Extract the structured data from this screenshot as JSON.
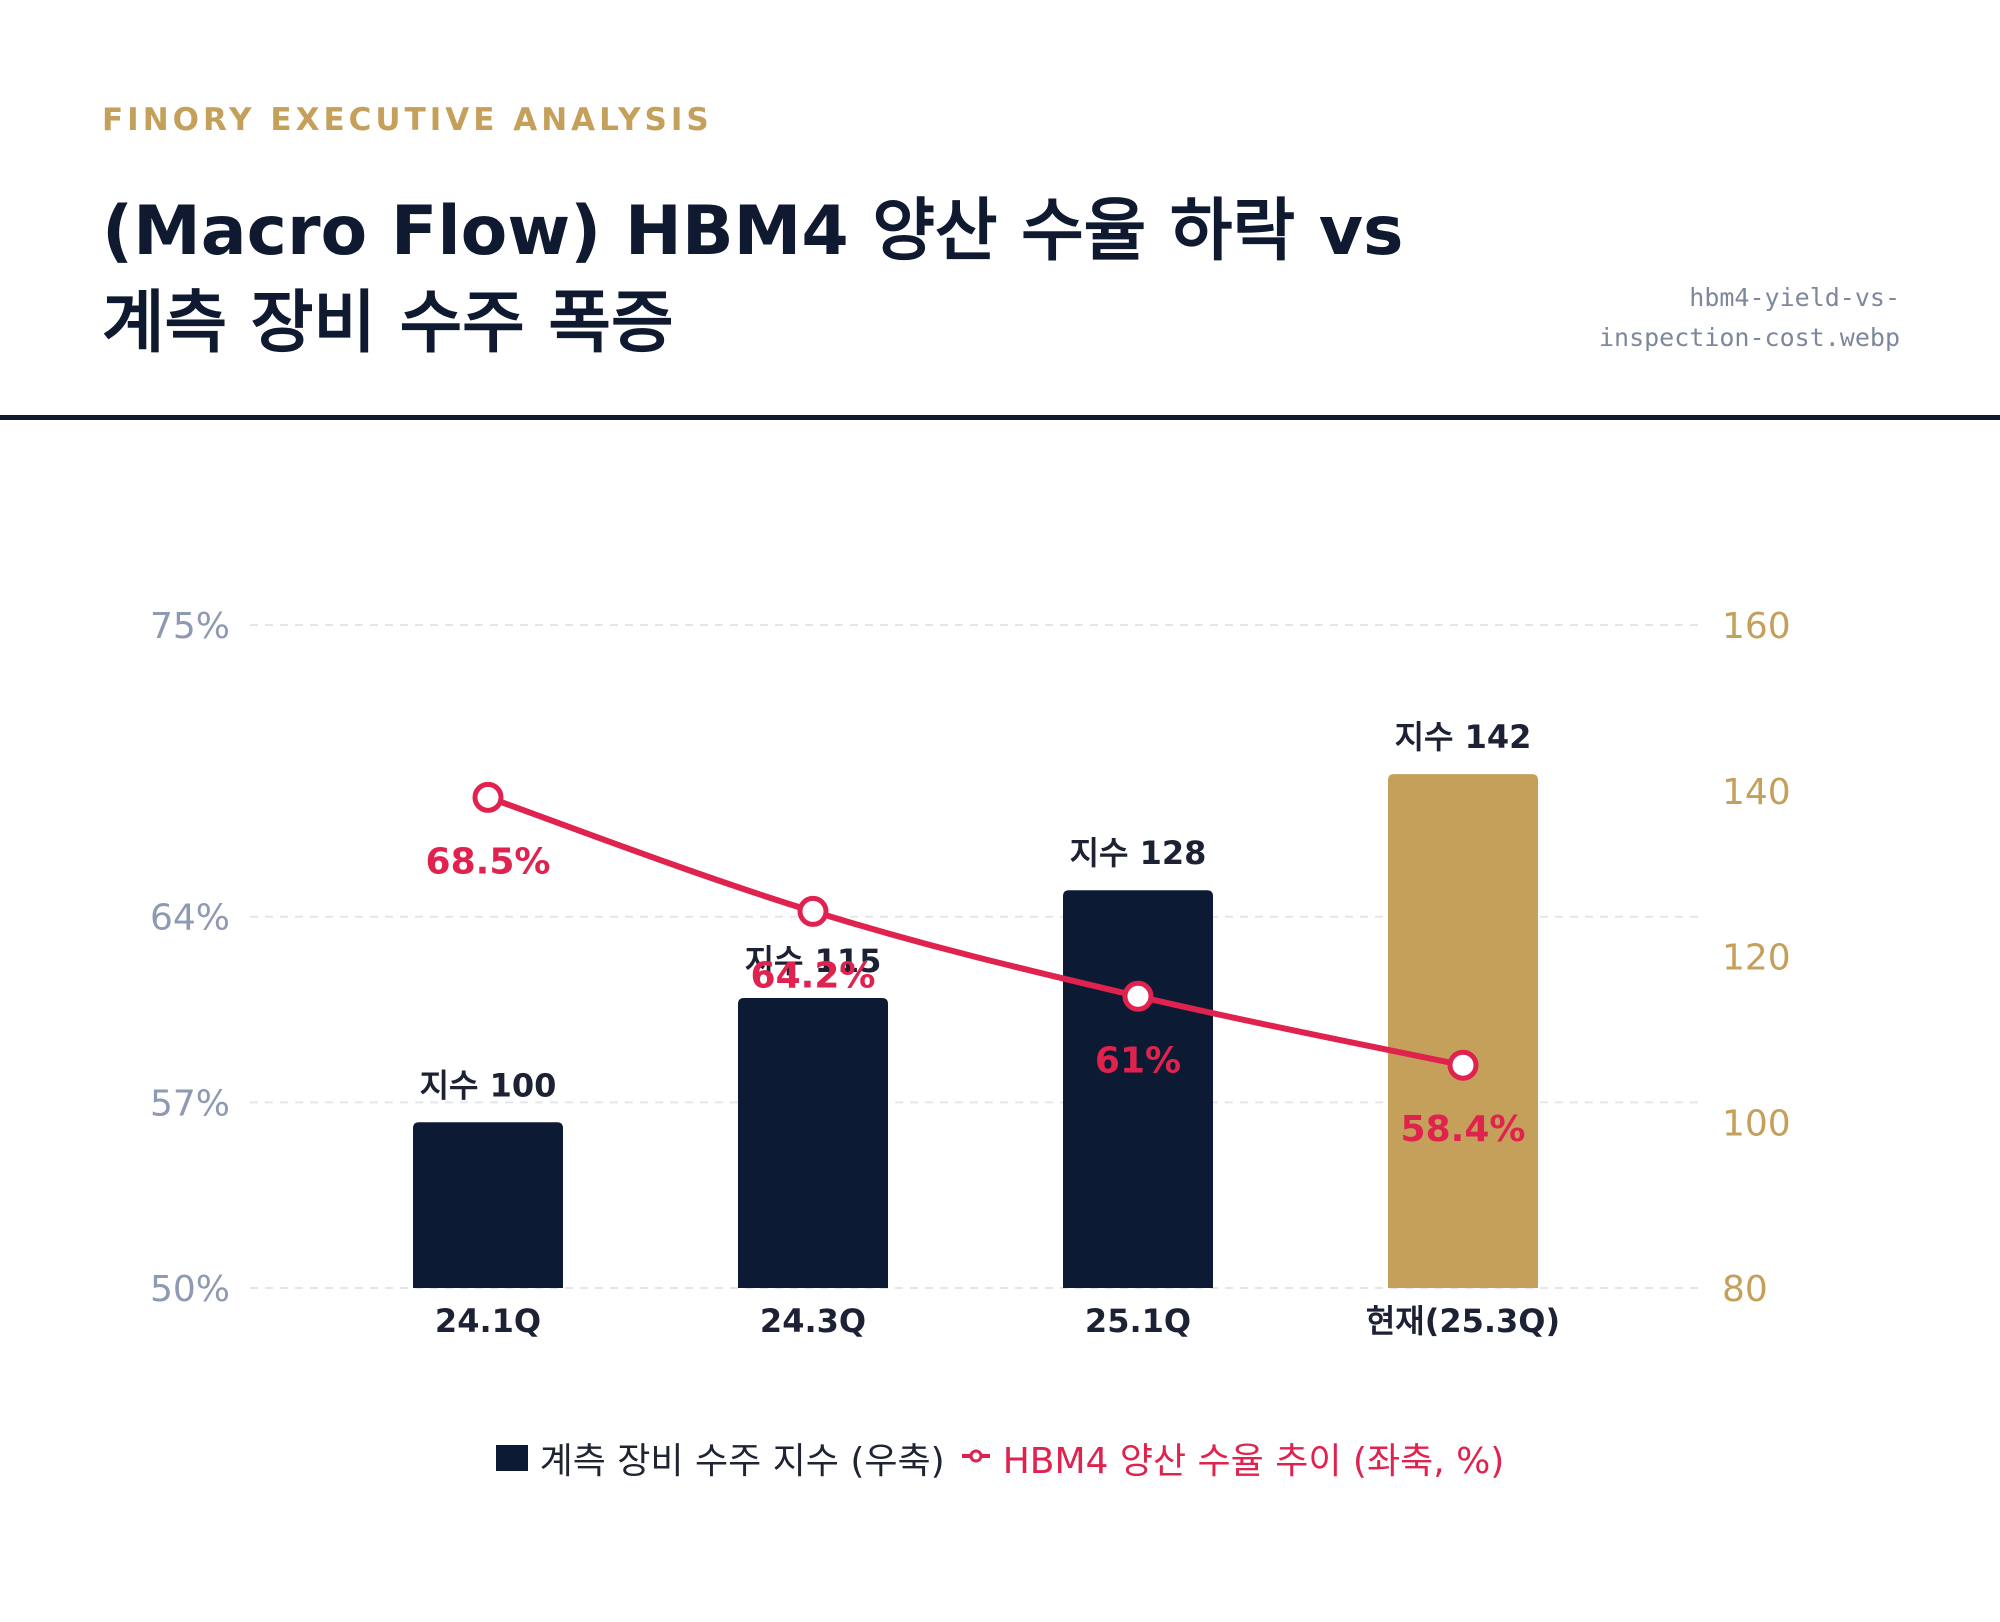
{
  "header": {
    "kicker": "FINORY EXECUTIVE ANALYSIS",
    "title_line1": "(Macro Flow) HBM4 양산 수율 하락 vs",
    "title_line2": "계측 장비 수주 폭증",
    "filename_line1": "hbm4-yield-vs-",
    "filename_line2": "inspection-cost.webp"
  },
  "colors": {
    "navy": "#0d1a33",
    "gold": "#c4a05a",
    "red": "#e0224f",
    "left_axis": "#8e9ab3",
    "right_axis": "#c4a05a"
  },
  "chart_data": {
    "type": "bar",
    "categories": [
      "24.1Q",
      "24.3Q",
      "25.1Q",
      "현재(25.3Q)"
    ],
    "series": [
      {
        "name": "계측 장비 수주 지수 (우축)",
        "type": "bar",
        "axis": "right",
        "values": [
          100,
          115,
          128,
          142
        ],
        "labels": [
          "지수 100",
          "지수 115",
          "지수 128",
          "지수 142"
        ],
        "highlight_index": 3
      },
      {
        "name": "HBM4 양산 수율 추이 (좌축, %)",
        "type": "line",
        "axis": "left",
        "values": [
          68.5,
          64.2,
          61,
          58.4
        ],
        "labels": [
          "68.5%",
          "64.2%",
          "61%",
          "58.4%"
        ]
      }
    ],
    "left_axis": {
      "ylim": [
        50,
        75
      ],
      "ticks": [
        75,
        64,
        57,
        50
      ],
      "tick_labels": [
        "75%",
        "64%",
        "57%",
        "50%"
      ]
    },
    "right_axis": {
      "ylim": [
        80,
        160
      ],
      "ticks": [
        160,
        140,
        120,
        100,
        80
      ],
      "tick_labels": [
        "160",
        "140",
        "120",
        "100",
        "80"
      ]
    },
    "grid": true,
    "legend": "bottom-center"
  },
  "legend": {
    "bar_label": "계측 장비 수주 지수 (우축)",
    "line_label": "HBM4 양산 수율 추이 (좌축, %)"
  }
}
